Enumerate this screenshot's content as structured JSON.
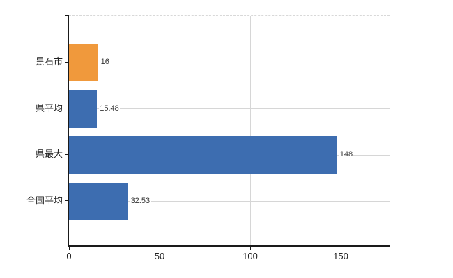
{
  "chart_data": {
    "type": "bar",
    "orientation": "horizontal",
    "title": "",
    "xlabel": "",
    "ylabel": "",
    "categories": [
      "黒石市",
      "県平均",
      "県最大",
      "全国平均"
    ],
    "values": [
      16,
      15.48,
      148,
      32.53
    ],
    "value_labels": [
      "16",
      "15.48",
      "148",
      "32.53"
    ],
    "bar_colors": [
      "#F0993C",
      "#3D6DB0",
      "#3D6DB0",
      "#3D6DB0"
    ],
    "x_ticks": [
      0,
      50,
      100,
      150
    ],
    "x_tick_labels": [
      "0",
      "50",
      "100",
      "150"
    ],
    "xlim": [
      0,
      176
    ],
    "grid": true,
    "gridlines": "vertical at x ticks, horizontal at category centers",
    "legend_position": "none"
  },
  "colors": {
    "bar_blue": "#3D6DB0",
    "bar_orange": "#F0993C",
    "gridline": "#D6D6D6",
    "axis": "#1A1A1A",
    "text": "#222222",
    "value_text": "#333333",
    "background": "#FFFFFF"
  }
}
